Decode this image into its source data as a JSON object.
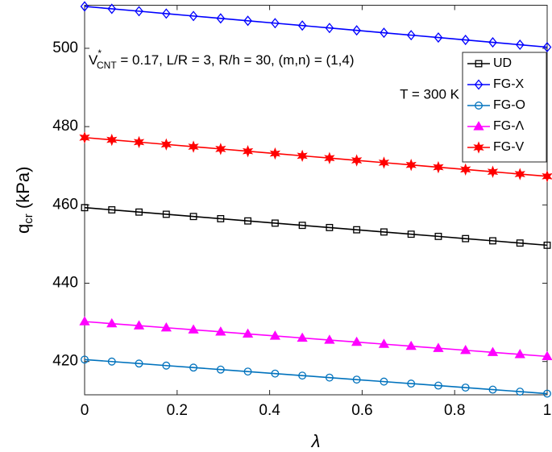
{
  "chart_data": {
    "type": "line",
    "x_label": "λ",
    "y_label": {
      "base": "q",
      "sub": "cr",
      "text": " (kPa)"
    },
    "annotations": [
      {
        "base": "V",
        "sup": "*",
        "sub": "CNT",
        "text": " = 0.17, L/R = 3, R/h = 30, (m,n) = (1,4)"
      },
      {
        "text": "T = 300 K"
      }
    ],
    "x": [
      0,
      0.0588,
      0.1176,
      0.1765,
      0.2353,
      0.2941,
      0.3529,
      0.4118,
      0.4706,
      0.5294,
      0.5882,
      0.6471,
      0.7059,
      0.7647,
      0.8235,
      0.8824,
      0.9412,
      1
    ],
    "series": [
      {
        "name": "UD",
        "color": "#000000",
        "marker": "square",
        "values": [
          459.3,
          458.74,
          458.17,
          457.61,
          457.04,
          456.48,
          455.91,
          455.35,
          454.78,
          454.22,
          453.65,
          453.09,
          452.52,
          451.96,
          451.39,
          450.83,
          450.26,
          449.7
        ]
      },
      {
        "name": "FG-X",
        "color": "#0000ff",
        "marker": "diamond",
        "values": [
          510.7,
          510.09,
          509.48,
          508.86,
          508.25,
          507.64,
          507.03,
          506.42,
          505.81,
          505.19,
          504.58,
          503.97,
          503.36,
          502.75,
          502.14,
          501.52,
          500.91,
          500.3
        ]
      },
      {
        "name": "FG-O",
        "color": "#0072bd",
        "marker": "circle",
        "values": [
          420.5,
          419.99,
          419.48,
          418.96,
          418.45,
          417.94,
          417.43,
          416.92,
          416.41,
          415.89,
          415.38,
          414.87,
          414.36,
          413.85,
          413.34,
          412.82,
          412.31,
          411.8
        ]
      },
      {
        "name": "FG-Λ",
        "color": "#ff00ff",
        "marker": "triangle",
        "values": [
          430.2,
          429.68,
          429.15,
          428.63,
          428.11,
          427.58,
          427.06,
          426.54,
          426.01,
          425.49,
          424.96,
          424.44,
          423.92,
          423.39,
          422.87,
          422.35,
          421.82,
          421.3
        ]
      },
      {
        "name": "FG-V",
        "color": "#ff0000",
        "marker": "star",
        "values": [
          477.2,
          476.62,
          476.04,
          475.45,
          474.87,
          474.29,
          473.71,
          473.12,
          472.54,
          471.96,
          471.38,
          470.79,
          470.21,
          469.63,
          469.05,
          468.46,
          467.88,
          467.3
        ]
      }
    ],
    "xlim": [
      0,
      1
    ],
    "xticks": [
      0,
      0.2,
      0.4,
      0.6,
      0.8,
      1
    ],
    "ylim": [
      411.5,
      511
    ],
    "yticks": [
      420,
      440,
      460,
      480,
      500
    ],
    "grid": false,
    "legend": "northeast"
  }
}
